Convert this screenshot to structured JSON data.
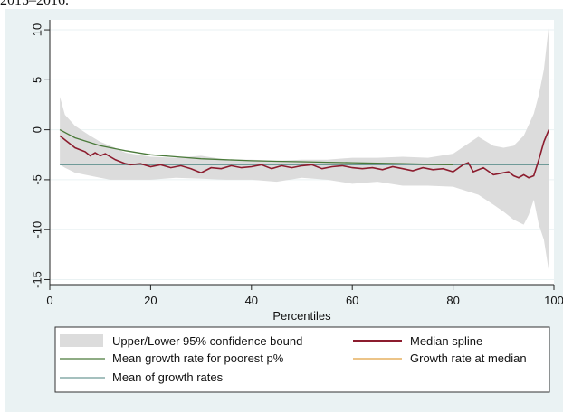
{
  "caption": "2015–2016.",
  "chart_data": {
    "type": "line",
    "title": "",
    "xlabel": "Percentiles",
    "ylabel": "",
    "xlim": [
      0,
      100
    ],
    "ylim": [
      -15.5,
      11
    ],
    "xticks": [
      0,
      20,
      40,
      60,
      80,
      100
    ],
    "yticks": [
      10,
      5,
      0,
      -5,
      -10,
      -15
    ],
    "grid": "horizontal",
    "legend_position": "bottom",
    "confidence_band": {
      "name": "Upper/Lower 95% confidence bound",
      "color": "#dcdcdc",
      "x": [
        2,
        3,
        5,
        8,
        10,
        12,
        15,
        20,
        25,
        30,
        35,
        40,
        45,
        50,
        55,
        60,
        65,
        70,
        75,
        80,
        85,
        88,
        90,
        92,
        94,
        95,
        96,
        97,
        98,
        99
      ],
      "upper": [
        3.3,
        1.5,
        0.4,
        -0.6,
        -1.2,
        -1.6,
        -2.3,
        -2.7,
        -2.8,
        -2.6,
        -3.0,
        -3.0,
        -3.1,
        -3.0,
        -3.0,
        -2.8,
        -2.8,
        -2.7,
        -2.8,
        -2.4,
        -0.7,
        -1.6,
        -1.8,
        -1.6,
        -0.6,
        0.5,
        1.6,
        3.5,
        6.0,
        10.5
      ],
      "lower": [
        -3.5,
        -3.8,
        -4.3,
        -4.6,
        -4.8,
        -5.0,
        -5.0,
        -5.0,
        -4.8,
        -4.9,
        -5.0,
        -5.0,
        -5.2,
        -4.8,
        -5.0,
        -5.4,
        -5.2,
        -5.6,
        -5.6,
        -5.7,
        -6.5,
        -7.5,
        -8.2,
        -9.0,
        -9.5,
        -8.5,
        -7.0,
        -9.5,
        -11.0,
        -14.2
      ]
    },
    "series": [
      {
        "name": "Median spline",
        "color": "#8c1c2e",
        "x": [
          2,
          3,
          4,
          5,
          6,
          7,
          8,
          9,
          10,
          11,
          12,
          13,
          14,
          15,
          16,
          18,
          20,
          22,
          24,
          26,
          28,
          30,
          32,
          34,
          36,
          38,
          40,
          42,
          44,
          46,
          48,
          50,
          52,
          54,
          56,
          58,
          60,
          62,
          64,
          66,
          68,
          70,
          72,
          74,
          76,
          78,
          80,
          82,
          83,
          84,
          86,
          88,
          90,
          91,
          92,
          93,
          94,
          95,
          96,
          97,
          98,
          99
        ],
        "y": [
          -0.6,
          -1.0,
          -1.4,
          -1.8,
          -2.0,
          -2.2,
          -2.6,
          -2.3,
          -2.6,
          -2.4,
          -2.7,
          -3.0,
          -3.2,
          -3.4,
          -3.5,
          -3.4,
          -3.7,
          -3.5,
          -3.8,
          -3.6,
          -3.9,
          -4.3,
          -3.8,
          -3.9,
          -3.6,
          -3.8,
          -3.7,
          -3.5,
          -3.9,
          -3.6,
          -3.8,
          -3.6,
          -3.5,
          -3.9,
          -3.7,
          -3.6,
          -3.8,
          -3.9,
          -3.8,
          -4.0,
          -3.7,
          -3.9,
          -4.1,
          -3.8,
          -4.0,
          -3.9,
          -4.2,
          -3.5,
          -3.3,
          -4.2,
          -3.8,
          -4.5,
          -4.3,
          -4.2,
          -4.6,
          -4.8,
          -4.5,
          -4.8,
          -4.6,
          -3.0,
          -1.2,
          0.0
        ]
      },
      {
        "name": "Mean growth rate for poorest p%",
        "color": "#4a7a3a",
        "x": [
          2,
          5,
          10,
          15,
          20,
          25,
          30,
          35,
          40,
          45,
          50,
          55,
          60,
          65,
          70,
          75,
          80
        ],
        "y": [
          0.0,
          -0.8,
          -1.6,
          -2.1,
          -2.5,
          -2.7,
          -2.9,
          -3.0,
          -3.1,
          -3.15,
          -3.2,
          -3.25,
          -3.3,
          -3.35,
          -3.4,
          -3.45,
          -3.5
        ]
      },
      {
        "name": "Growth rate at median",
        "color": "#e0a040",
        "x": [],
        "y": []
      },
      {
        "name": "Mean of growth rates",
        "color": "#6f9a98",
        "x": [
          2,
          99
        ],
        "y": [
          -3.5,
          -3.5
        ]
      }
    ]
  }
}
